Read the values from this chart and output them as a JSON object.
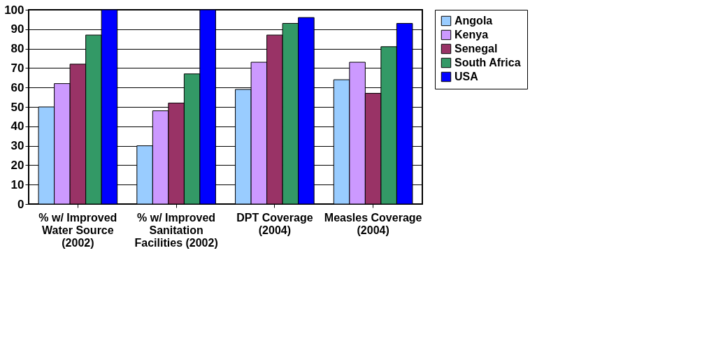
{
  "chart_data": {
    "type": "bar",
    "categories": [
      "% w/ Improved Water Source (2002)",
      "% w/ Improved Sanitation Facilities (2002)",
      "DPT Coverage (2004)",
      "Measles Coverage (2004)"
    ],
    "series": [
      {
        "name": "Angola",
        "color": "#99ccff",
        "values": [
          50,
          30,
          59,
          64
        ]
      },
      {
        "name": "Kenya",
        "color": "#cc99ff",
        "values": [
          62,
          48,
          73,
          73
        ]
      },
      {
        "name": "Senegal",
        "color": "#993366",
        "values": [
          72,
          52,
          87,
          57
        ]
      },
      {
        "name": "South Africa",
        "color": "#339966",
        "values": [
          87,
          67,
          93,
          81
        ]
      },
      {
        "name": "USA",
        "color": "#0000ff",
        "values": [
          100,
          100,
          96,
          93
        ]
      }
    ],
    "ylim": [
      0,
      100
    ],
    "yticks": [
      0,
      10,
      20,
      30,
      40,
      50,
      60,
      70,
      80,
      90,
      100
    ],
    "grid": "y",
    "legend": "right"
  }
}
